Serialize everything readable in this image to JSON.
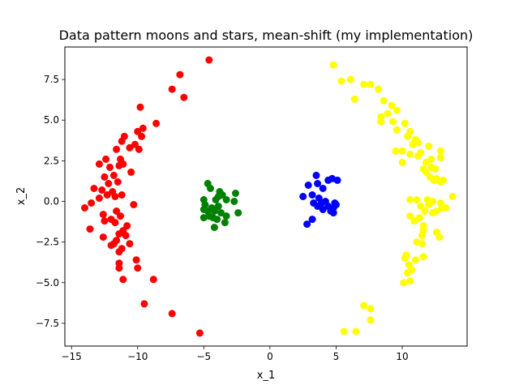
{
  "chart_data": {
    "type": "scatter",
    "title": "Data pattern moons and stars, mean-shift (my implementation)",
    "xlabel": "x_1",
    "ylabel": "x_2",
    "xlim": [
      -15.5,
      14.9
    ],
    "ylim": [
      -8.9,
      9.5
    ],
    "xticks": [
      -15,
      -10,
      -5,
      0,
      5,
      10
    ],
    "yticks": [
      -7.5,
      -5.0,
      -2.5,
      0.0,
      2.5,
      5.0,
      7.5
    ],
    "grid": false,
    "legend": "none",
    "series": [
      {
        "color": "#ff0000",
        "points": [
          [
            -4.6,
            8.7
          ],
          [
            -6.8,
            7.8
          ],
          [
            -7.4,
            6.9
          ],
          [
            -6.5,
            6.4
          ],
          [
            -9.8,
            5.8
          ],
          [
            -8.6,
            4.8
          ],
          [
            -9.6,
            4.5
          ],
          [
            -10.0,
            4.3
          ],
          [
            -9.7,
            4.0
          ],
          [
            -11.0,
            4.0
          ],
          [
            -11.2,
            3.7
          ],
          [
            -10.2,
            3.5
          ],
          [
            -10.6,
            3.3
          ],
          [
            -11.6,
            3.2
          ],
          [
            -9.9,
            3.2
          ],
          [
            -12.4,
            2.6
          ],
          [
            -11.3,
            2.6
          ],
          [
            -12.9,
            2.3
          ],
          [
            -11.1,
            2.3
          ],
          [
            -12.1,
            2.1
          ],
          [
            -11.4,
            2.2
          ],
          [
            -10.5,
            1.8
          ],
          [
            -12.5,
            1.5
          ],
          [
            -11.8,
            1.6
          ],
          [
            -11.5,
            1.2
          ],
          [
            -12.2,
            1.1
          ],
          [
            -13.3,
            0.8
          ],
          [
            -12.7,
            0.7
          ],
          [
            -11.9,
            0.6
          ],
          [
            -11.2,
            0.4
          ],
          [
            -12.3,
            0.4
          ],
          [
            -11.7,
            0.3
          ],
          [
            -12.9,
            0.2
          ],
          [
            -13.5,
            -0.1
          ],
          [
            -10.3,
            -0.2
          ],
          [
            -14.0,
            -0.4
          ],
          [
            -11.6,
            -0.6
          ],
          [
            -12.6,
            -0.8
          ],
          [
            -11.3,
            -0.9
          ],
          [
            -12.0,
            -1.1
          ],
          [
            -12.5,
            -1.2
          ],
          [
            -11.7,
            -1.3
          ],
          [
            -10.8,
            -1.5
          ],
          [
            -13.6,
            -1.7
          ],
          [
            -11.1,
            -1.8
          ],
          [
            -11.4,
            -2.0
          ],
          [
            -12.6,
            -2.2
          ],
          [
            -10.9,
            -2.1
          ],
          [
            -11.6,
            -2.4
          ],
          [
            -11.8,
            -2.6
          ],
          [
            -10.6,
            -2.6
          ],
          [
            -12.0,
            -2.7
          ],
          [
            -11.2,
            -2.9
          ],
          [
            -11.4,
            -3.1
          ],
          [
            -10.1,
            -3.6
          ],
          [
            -11.4,
            -3.8
          ],
          [
            -11.4,
            -4.1
          ],
          [
            -10.0,
            -4.1
          ],
          [
            -11.1,
            -4.8
          ],
          [
            -8.8,
            -4.8
          ],
          [
            -9.5,
            -6.3
          ],
          [
            -7.4,
            -6.9
          ],
          [
            -5.3,
            -8.1
          ]
        ]
      },
      {
        "color": "#008000",
        "points": [
          [
            -4.7,
            1.1
          ],
          [
            -4.5,
            0.8
          ],
          [
            -3.8,
            0.6
          ],
          [
            -3.6,
            0.4
          ],
          [
            -2.6,
            0.5
          ],
          [
            -3.9,
            0.3
          ],
          [
            -4.1,
            0.1
          ],
          [
            -3.3,
            0.1
          ],
          [
            -5.0,
            0.1
          ],
          [
            -2.7,
            0.0
          ],
          [
            -4.9,
            -0.2
          ],
          [
            -3.9,
            -0.3
          ],
          [
            -4.4,
            -0.4
          ],
          [
            -5.0,
            -0.5
          ],
          [
            -4.7,
            -0.6
          ],
          [
            -4.2,
            -0.6
          ],
          [
            -3.7,
            -0.7
          ],
          [
            -2.4,
            -0.7
          ],
          [
            -4.6,
            -0.9
          ],
          [
            -3.3,
            -0.9
          ],
          [
            -5.0,
            -1.0
          ],
          [
            -4.3,
            -1.0
          ],
          [
            -4.0,
            -1.1
          ],
          [
            -3.4,
            -1.3
          ],
          [
            -4.2,
            -1.6
          ]
        ]
      },
      {
        "color": "#0000ff",
        "points": [
          [
            3.5,
            1.6
          ],
          [
            3.6,
            1.1
          ],
          [
            4.4,
            1.3
          ],
          [
            4.7,
            1.4
          ],
          [
            5.1,
            1.3
          ],
          [
            2.9,
            1.0
          ],
          [
            4.0,
            0.8
          ],
          [
            3.2,
            0.4
          ],
          [
            2.5,
            0.3
          ],
          [
            3.7,
            0.2
          ],
          [
            4.2,
            0.0
          ],
          [
            3.9,
            -0.1
          ],
          [
            3.3,
            -0.1
          ],
          [
            3.6,
            -0.3
          ],
          [
            4.9,
            -0.1
          ],
          [
            4.4,
            -0.3
          ],
          [
            4.8,
            -0.4
          ],
          [
            5.0,
            -0.2
          ],
          [
            4.0,
            -0.5
          ],
          [
            4.6,
            -0.6
          ],
          [
            4.8,
            -0.7
          ],
          [
            3.2,
            -1.1
          ],
          [
            2.8,
            -1.4
          ]
        ]
      },
      {
        "color": "#ffff00",
        "points": [
          [
            4.8,
            8.4
          ],
          [
            5.4,
            7.4
          ],
          [
            6.1,
            7.5
          ],
          [
            7.6,
            7.2
          ],
          [
            7.1,
            7.2
          ],
          [
            8.2,
            6.9
          ],
          [
            6.4,
            6.3
          ],
          [
            8.6,
            6.2
          ],
          [
            9.2,
            5.9
          ],
          [
            9.6,
            5.6
          ],
          [
            8.9,
            5.4
          ],
          [
            8.4,
            5.2
          ],
          [
            8.4,
            4.9
          ],
          [
            9.3,
            4.9
          ],
          [
            10.2,
            4.8
          ],
          [
            9.6,
            4.4
          ],
          [
            10.6,
            4.3
          ],
          [
            10.4,
            4.0
          ],
          [
            11.0,
            3.8
          ],
          [
            10.8,
            3.5
          ],
          [
            12.0,
            3.4
          ],
          [
            11.2,
            3.6
          ],
          [
            9.5,
            3.1
          ],
          [
            10.0,
            3.1
          ],
          [
            11.4,
            3.0
          ],
          [
            12.9,
            3.1
          ],
          [
            10.6,
            2.9
          ],
          [
            11.2,
            2.8
          ],
          [
            12.2,
            2.6
          ],
          [
            12.9,
            2.7
          ],
          [
            10.0,
            2.4
          ],
          [
            11.8,
            2.4
          ],
          [
            12.2,
            2.1
          ],
          [
            11.6,
            2.0
          ],
          [
            12.5,
            2.0
          ],
          [
            11.8,
            1.8
          ],
          [
            12.1,
            1.5
          ],
          [
            12.4,
            1.3
          ],
          [
            12.6,
            1.4
          ],
          [
            12.9,
            1.2
          ],
          [
            13.1,
            1.3
          ],
          [
            10.6,
            0.1
          ],
          [
            11.1,
            0.1
          ],
          [
            11.9,
            0.1
          ],
          [
            12.3,
            0.0
          ],
          [
            13.8,
            0.3
          ],
          [
            12.9,
            -0.1
          ],
          [
            12.0,
            -0.2
          ],
          [
            11.4,
            -0.3
          ],
          [
            13.0,
            -0.4
          ],
          [
            13.3,
            -0.4
          ],
          [
            12.6,
            -0.6
          ],
          [
            11.7,
            -0.6
          ],
          [
            10.6,
            -0.9
          ],
          [
            12.3,
            -0.7
          ],
          [
            11.3,
            -1.0
          ],
          [
            10.9,
            -1.2
          ],
          [
            11.6,
            -1.5
          ],
          [
            11.6,
            -1.8
          ],
          [
            12.6,
            -1.9
          ],
          [
            11.5,
            -2.1
          ],
          [
            12.8,
            -2.2
          ],
          [
            11.1,
            -2.5
          ],
          [
            11.5,
            -2.6
          ],
          [
            10.3,
            -3.3
          ],
          [
            10.2,
            -3.5
          ],
          [
            11.6,
            -3.4
          ],
          [
            11.0,
            -3.6
          ],
          [
            10.5,
            -3.9
          ],
          [
            10.7,
            -4.2
          ],
          [
            10.4,
            -4.4
          ],
          [
            10.6,
            -4.9
          ],
          [
            10.1,
            -5.0
          ],
          [
            7.1,
            -6.4
          ],
          [
            7.6,
            -6.6
          ],
          [
            7.6,
            -7.3
          ],
          [
            5.6,
            -8.0
          ],
          [
            6.5,
            -8.0
          ]
        ]
      }
    ]
  }
}
